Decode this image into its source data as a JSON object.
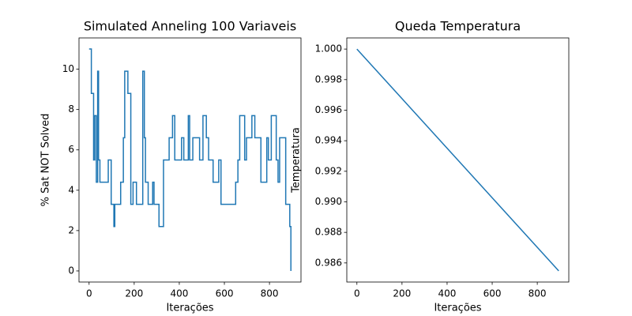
{
  "chart_data": [
    {
      "type": "line",
      "title": "Simulated Anneling 100 Variaveis",
      "x_label": "Iterações",
      "y_label": "% Sat NOT Solved",
      "x": [
        0,
        10,
        10,
        20,
        20,
        25,
        25,
        32,
        32,
        38,
        38,
        42,
        42,
        48,
        48,
        85,
        85,
        98,
        98,
        110,
        110,
        114,
        114,
        140,
        140,
        152,
        152,
        158,
        158,
        172,
        172,
        185,
        185,
        195,
        195,
        210,
        210,
        238,
        238,
        245,
        245,
        250,
        250,
        262,
        262,
        282,
        282,
        288,
        288,
        310,
        310,
        330,
        330,
        355,
        355,
        370,
        370,
        380,
        380,
        410,
        410,
        420,
        420,
        440,
        440,
        446,
        446,
        460,
        460,
        490,
        490,
        505,
        505,
        520,
        520,
        530,
        530,
        550,
        550,
        575,
        575,
        585,
        585,
        650,
        650,
        660,
        660,
        668,
        668,
        690,
        690,
        698,
        698,
        722,
        722,
        735,
        735,
        762,
        762,
        788,
        788,
        795,
        795,
        808,
        808,
        830,
        830,
        838,
        838,
        845,
        845,
        872,
        872,
        890,
        890,
        895,
        895
      ],
      "series": [
        {
          "color": "#1f77b4",
          "values": [
            11,
            11,
            8.8,
            8.8,
            5.5,
            5.5,
            7.7,
            7.7,
            4.4,
            4.4,
            9.9,
            9.9,
            5.5,
            5.5,
            4.4,
            4.4,
            5.5,
            5.5,
            3.3,
            3.3,
            2.2,
            2.2,
            3.3,
            3.3,
            4.4,
            4.4,
            6.6,
            6.6,
            9.9,
            9.9,
            8.8,
            8.8,
            3.3,
            3.3,
            4.4,
            4.4,
            3.3,
            3.3,
            9.9,
            9.9,
            6.6,
            6.6,
            4.4,
            4.4,
            3.3,
            3.3,
            4.4,
            4.4,
            3.3,
            3.3,
            2.2,
            2.2,
            5.5,
            5.5,
            6.6,
            6.6,
            7.7,
            7.7,
            5.5,
            5.5,
            6.6,
            6.6,
            5.5,
            5.5,
            7.7,
            7.7,
            5.5,
            5.5,
            6.6,
            6.6,
            5.5,
            5.5,
            7.7,
            7.7,
            6.6,
            6.6,
            5.5,
            5.5,
            4.4,
            4.4,
            5.5,
            5.5,
            3.3,
            3.3,
            4.4,
            4.4,
            5.5,
            5.5,
            7.7,
            7.7,
            5.5,
            5.5,
            6.6,
            6.6,
            7.7,
            7.7,
            6.6,
            6.6,
            4.4,
            4.4,
            6.6,
            6.6,
            5.5,
            5.5,
            7.7,
            7.7,
            5.5,
            5.5,
            4.4,
            4.4,
            6.6,
            6.6,
            3.3,
            3.3,
            2.2,
            2.2,
            0
          ]
        }
      ],
      "xlim": [
        -44.75,
        939.75
      ],
      "xticks": [
        0,
        200,
        400,
        600,
        800
      ],
      "ylim": [
        -0.55,
        11.55
      ],
      "yticks": [
        0,
        2,
        4,
        6,
        8,
        10
      ]
    },
    {
      "type": "line",
      "title": "Queda Temperatura",
      "x_label": "Iterações",
      "y_label": "Temperatura",
      "x": [
        0,
        895
      ],
      "series": [
        {
          "color": "#1f77b4",
          "values": [
            1.0,
            0.98548
          ]
        }
      ],
      "xlim": [
        -44.75,
        939.75
      ],
      "xticks": [
        0,
        200,
        400,
        600,
        800
      ],
      "ylim": [
        0.98475,
        1.00073
      ],
      "yticks": [
        0.986,
        0.988,
        {
          "value": 0.99,
          "label": "0.990"
        },
        0.992,
        0.994,
        0.996,
        0.998,
        {
          "value": 1,
          "label": "1.000"
        }
      ]
    }
  ]
}
